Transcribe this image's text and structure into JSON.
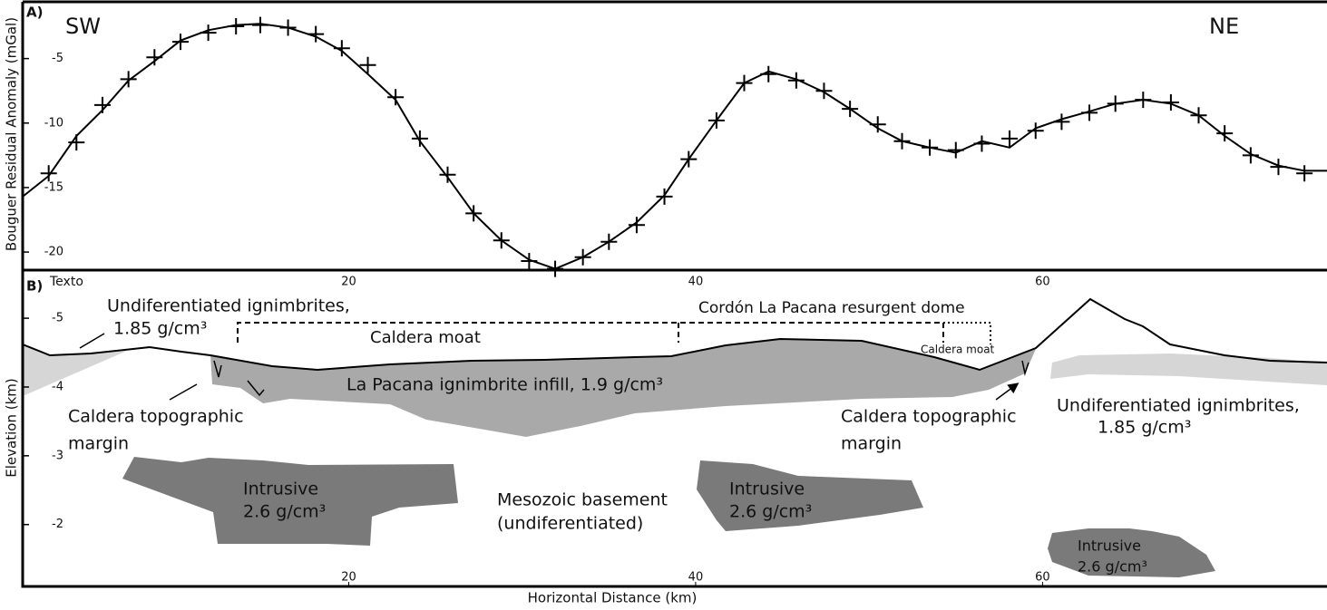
{
  "panels": {
    "a": "A)",
    "b": "B)",
    "sw": "SW",
    "ne": "NE"
  },
  "chart_data": [
    {
      "type": "line",
      "ylabel": "Bouguer Residual Anomaly (mGal)",
      "xlim": [
        1.2,
        76.4
      ],
      "ylim": [
        -21.4,
        -0.6
      ],
      "yticks": [
        -5,
        -10,
        -15,
        -20
      ],
      "series": [
        {
          "color": "#000000",
          "marker": "plus",
          "x": [
            2.7,
            4.3,
            5.8,
            7.3,
            8.8,
            10.3,
            11.9,
            13.5,
            14.9,
            16.5,
            18.1,
            19.6,
            21.1,
            22.7,
            24.1,
            25.7,
            27.2,
            28.8,
            30.4,
            31.9,
            33.5,
            35.0,
            36.6,
            38.2,
            39.6,
            41.2,
            42.8,
            44.2,
            45.8,
            47.4,
            48.9,
            50.5,
            51.9,
            53.5,
            55.0,
            56.5,
            58.1,
            59.6,
            61.1,
            62.7,
            64.2,
            65.8,
            67.4,
            69.0,
            70.5,
            72.0,
            73.6,
            75.1
          ],
          "values": [
            -13.9,
            -11.5,
            -8.6,
            -6.6,
            -4.9,
            -3.7,
            -3.0,
            -2.5,
            -2.4,
            -2.6,
            -3.1,
            -4.2,
            -5.5,
            -8.0,
            -11.2,
            -14.0,
            -17.0,
            -19.1,
            -20.7,
            -21.3,
            -20.4,
            -19.2,
            -17.9,
            -15.7,
            -12.8,
            -9.8,
            -6.9,
            -6.2,
            -6.7,
            -7.5,
            -8.9,
            -10.1,
            -11.4,
            -11.9,
            -12.1,
            -11.6,
            -11.2,
            -10.6,
            -9.9,
            -9.2,
            -8.5,
            -8.2,
            -8.4,
            -9.4,
            -10.8,
            -12.5,
            -13.4,
            -13.9
          ]
        },
        {
          "color": "#000000",
          "marker": "none",
          "x": [
            1.2,
            2.7,
            4.3,
            5.8,
            7.3,
            8.8,
            10.3,
            11.9,
            13.5,
            14.9,
            16.5,
            18.1,
            19.6,
            21.1,
            22.7,
            24.1,
            25.7,
            27.2,
            28.8,
            30.4,
            31.9,
            33.5,
            35.0,
            36.6,
            38.2,
            39.6,
            41.2,
            42.8,
            44.2,
            45.8,
            47.4,
            48.9,
            50.5,
            51.9,
            53.5,
            55.0,
            56.5,
            58.1,
            59.6,
            61.1,
            62.7,
            64.2,
            65.8,
            67.4,
            69.0,
            70.5,
            72.0,
            73.6,
            75.1,
            76.4
          ],
          "values": [
            -15.7,
            -14.1,
            -11.0,
            -9.0,
            -6.7,
            -5.2,
            -3.6,
            -2.8,
            -2.4,
            -2.3,
            -2.6,
            -3.3,
            -4.4,
            -6.2,
            -8.2,
            -11.4,
            -14.2,
            -17.0,
            -19.1,
            -20.6,
            -21.3,
            -20.4,
            -19.2,
            -17.7,
            -15.6,
            -12.8,
            -9.8,
            -6.9,
            -6.0,
            -6.6,
            -7.6,
            -8.9,
            -10.4,
            -11.4,
            -11.9,
            -12.3,
            -11.4,
            -11.9,
            -10.4,
            -9.7,
            -9.1,
            -8.5,
            -8.2,
            -8.5,
            -9.4,
            -11.0,
            -12.4,
            -13.3,
            -13.7,
            -13.7
          ]
        }
      ]
    },
    {
      "type": "section",
      "ylabel": "Elevation (km)",
      "xlabel": "Horizontal Distance (km)",
      "xlim": [
        1.2,
        76.4
      ],
      "xticks": [
        20,
        40,
        60
      ],
      "ylim": [
        -1.1,
        -5.7
      ],
      "yticks": [
        -5,
        -4,
        -3,
        -2
      ],
      "annotations": [
        "Undiferentiated ignimbrites,",
        "1.85 g/cm³",
        "Cordón La Pacana resurgent dome",
        "Caldera moat",
        "Caldera moat",
        "La Pacana ignimbrite infill, 1.9 g/cm³",
        "Caldera topographic",
        "margin",
        "Caldera topographic",
        "margin",
        "Undiferentiated ignimbrites,",
        "1.85 g/cm³",
        "Intrusive",
        "2.6 g/cm³",
        "Mesozoic basement",
        "(undiferentiated)",
        "Intrusive",
        "2.6 g/cm³",
        "Intrusive",
        "2.6 g/cm³",
        "Texto"
      ]
    }
  ]
}
